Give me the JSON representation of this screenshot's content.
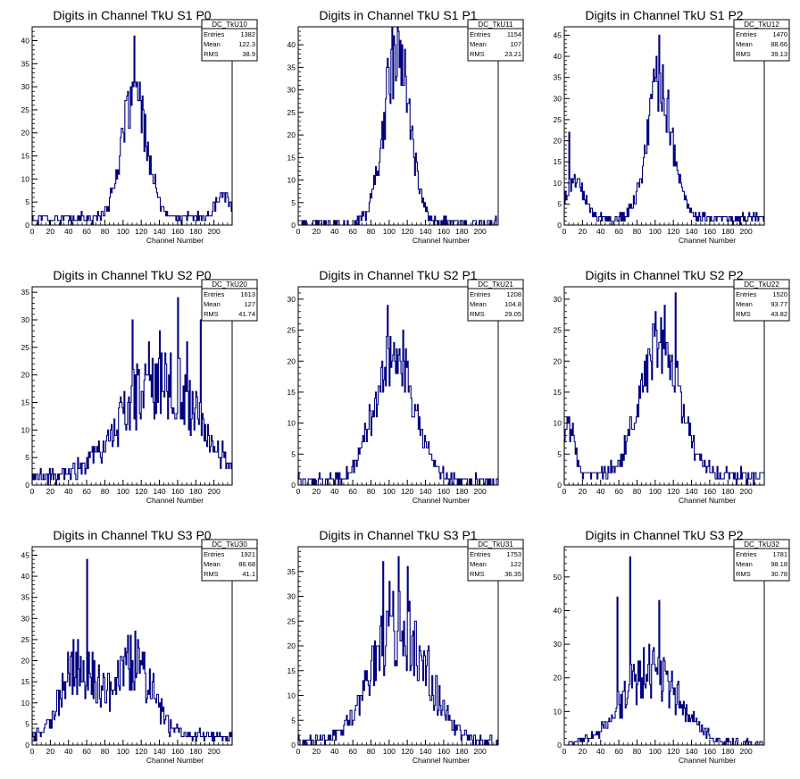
{
  "chart_data": [
    {
      "type": "histogram",
      "id": "TkU10",
      "title": "Digits in Channel TkU S1 P0",
      "xlabel": "Channel Number",
      "xlim": [
        0,
        220
      ],
      "ylim": [
        0,
        43
      ],
      "xticks": [
        0,
        20,
        40,
        60,
        80,
        100,
        120,
        140,
        160,
        180,
        200
      ],
      "yticks": [
        0,
        5,
        10,
        15,
        20,
        25,
        30,
        35,
        40
      ],
      "stats": {
        "name": "DC_TkU10",
        "labels": [
          "Entries",
          "Mean",
          "RMS"
        ],
        "values": [
          "1382",
          "122.3",
          "38.9"
        ]
      },
      "color": "#000080",
      "peaks": [
        {
          "mu": 112,
          "sigma": 14,
          "amp": 26
        },
        {
          "mu": 210,
          "sigma": 8,
          "amp": 5
        }
      ],
      "baseline": 1.5,
      "spikes": {
        "112": 41,
        "108": 30,
        "115": 31,
        "104": 28,
        "100": 20
      }
    },
    {
      "type": "histogram",
      "id": "TkU11",
      "title": "Digits in Channel TkU S1 P1",
      "xlabel": "Channel Number",
      "xlim": [
        0,
        220
      ],
      "ylim": [
        0,
        44
      ],
      "xticks": [
        0,
        20,
        40,
        60,
        80,
        100,
        120,
        140,
        160,
        180,
        200
      ],
      "yticks": [
        0,
        5,
        10,
        15,
        20,
        25,
        30,
        35,
        40
      ],
      "stats": {
        "name": "DC_TkU11",
        "labels": [
          "Entries",
          "Mean",
          "RMS"
        ],
        "values": [
          "1154",
          "107",
          "23.21"
        ]
      },
      "color": "#000080",
      "peaks": [
        {
          "mu": 108,
          "sigma": 14,
          "amp": 38
        }
      ],
      "baseline": 0.5,
      "spikes": {
        "110": 43,
        "106": 40
      }
    },
    {
      "type": "histogram",
      "id": "TkU12",
      "title": "Digits in Channel TkU S1 P2",
      "xlabel": "Channel Number",
      "xlim": [
        0,
        220
      ],
      "ylim": [
        0,
        47
      ],
      "xticks": [
        0,
        20,
        40,
        60,
        80,
        100,
        120,
        140,
        160,
        180,
        200
      ],
      "yticks": [
        0,
        5,
        10,
        15,
        20,
        25,
        30,
        35,
        40,
        45
      ],
      "stats": {
        "name": "DC_TkU12",
        "labels": [
          "Entries",
          "Mean",
          "RMS"
        ],
        "values": [
          "1470",
          "88.66",
          "39.13"
        ]
      },
      "color": "#000080",
      "peaks": [
        {
          "mu": 105,
          "sigma": 14,
          "amp": 32
        },
        {
          "mu": 12,
          "sigma": 10,
          "amp": 9
        }
      ],
      "baseline": 1.5,
      "spikes": {
        "104": 45,
        "108": 38,
        "5": 22,
        "100": 35
      }
    },
    {
      "type": "histogram",
      "id": "TkU20",
      "title": "Digits in Channel TkU S2 P0",
      "xlabel": "Channel Number",
      "xlim": [
        0,
        220
      ],
      "ylim": [
        0,
        36
      ],
      "xticks": [
        0,
        20,
        40,
        60,
        80,
        100,
        120,
        140,
        160,
        180,
        200
      ],
      "yticks": [
        0,
        5,
        10,
        15,
        20,
        25,
        30,
        35
      ],
      "stats": {
        "name": "DC_TkU20",
        "labels": [
          "Entries",
          "Mean",
          "RMS"
        ],
        "values": [
          "1613",
          "127",
          "41.74"
        ]
      },
      "color": "#000080",
      "peaks": [
        {
          "mu": 140,
          "sigma": 40,
          "amp": 18
        }
      ],
      "baseline": 1.5,
      "spikes": {
        "160": 34,
        "110": 30,
        "185": 30,
        "140": 28,
        "170": 26
      },
      "noisy": 1
    },
    {
      "type": "histogram",
      "id": "TkU21",
      "title": "Digits in Channel TkU S2 P1",
      "xlabel": "Channel Number",
      "xlim": [
        0,
        220
      ],
      "ylim": [
        0,
        32
      ],
      "xticks": [
        0,
        20,
        40,
        60,
        80,
        100,
        120,
        140,
        160,
        180,
        200
      ],
      "yticks": [
        0,
        5,
        10,
        15,
        20,
        25,
        30
      ],
      "stats": {
        "name": "DC_TkU21",
        "labels": [
          "Entries",
          "Mean",
          "RMS"
        ],
        "values": [
          "1208",
          "104.8",
          "29.05"
        ]
      },
      "color": "#000080",
      "peaks": [
        {
          "mu": 105,
          "sigma": 22,
          "amp": 21
        }
      ],
      "baseline": 0.6,
      "spikes": {
        "98": 29,
        "115": 25
      }
    },
    {
      "type": "histogram",
      "id": "TkU22",
      "title": "Digits in Channel TkU S2 P2",
      "xlabel": "Channel Number",
      "xlim": [
        0,
        220
      ],
      "ylim": [
        0,
        32
      ],
      "xticks": [
        0,
        20,
        40,
        60,
        80,
        100,
        120,
        140,
        160,
        180,
        200
      ],
      "yticks": [
        0,
        5,
        10,
        15,
        20,
        25,
        30
      ],
      "stats": {
        "name": "DC_TkU22",
        "labels": [
          "Entries",
          "Mean",
          "RMS"
        ],
        "values": [
          "1520",
          "93.77",
          "43.82"
        ]
      },
      "color": "#000080",
      "peaks": [
        {
          "mu": 105,
          "sigma": 22,
          "amp": 21
        },
        {
          "mu": 5,
          "sigma": 6,
          "amp": 8
        }
      ],
      "baseline": 1.5,
      "spikes": {
        "122": 31,
        "110": 29,
        "100": 28,
        "3": 11
      }
    },
    {
      "type": "histogram",
      "id": "TkU30",
      "title": "Digits in Channel TkU S3 P0",
      "xlabel": "Channel Number",
      "xlim": [
        0,
        220
      ],
      "ylim": [
        0,
        47
      ],
      "xticks": [
        0,
        20,
        40,
        60,
        80,
        100,
        120,
        140,
        160,
        180,
        200
      ],
      "yticks": [
        0,
        5,
        10,
        15,
        20,
        25,
        30,
        35,
        40,
        45
      ],
      "stats": {
        "name": "DC_TkU30",
        "labels": [
          "Entries",
          "Mean",
          "RMS"
        ],
        "values": [
          "1921",
          "86.68",
          "41.1"
        ]
      },
      "color": "#000080",
      "peaks": [
        {
          "mu": 50,
          "sigma": 18,
          "amp": 17
        },
        {
          "mu": 110,
          "sigma": 22,
          "amp": 17
        }
      ],
      "baseline": 2,
      "spikes": {
        "60": 44,
        "45": 25,
        "105": 26
      },
      "noisy": 1
    },
    {
      "type": "histogram",
      "id": "TkU31",
      "title": "Digits in Channel TkU S3 P1",
      "xlabel": "Channel Number",
      "xlim": [
        0,
        220
      ],
      "ylim": [
        0,
        40
      ],
      "xticks": [
        0,
        20,
        40,
        60,
        80,
        100,
        120,
        140,
        160,
        180,
        200
      ],
      "yticks": [
        0,
        5,
        10,
        15,
        20,
        25,
        30,
        35
      ],
      "stats": {
        "name": "DC_TkU31",
        "labels": [
          "Entries",
          "Mean",
          "RMS"
        ],
        "values": [
          "1753",
          "122",
          "36.35"
        ]
      },
      "color": "#000080",
      "peaks": [
        {
          "mu": 112,
          "sigma": 30,
          "amp": 23
        }
      ],
      "baseline": 0.8,
      "spikes": {
        "93": 37,
        "110": 38,
        "120": 36,
        "100": 33
      },
      "noisy": 1
    },
    {
      "type": "histogram",
      "id": "TkU32",
      "title": "Digits in Channel TkU S3 P2",
      "xlabel": "Channel Number",
      "xlim": [
        0,
        220
      ],
      "ylim": [
        0,
        59
      ],
      "xticks": [
        0,
        20,
        40,
        60,
        80,
        100,
        120,
        140,
        160,
        180,
        200
      ],
      "yticks": [
        0,
        10,
        20,
        30,
        40,
        50
      ],
      "stats": {
        "name": "DC_TkU32",
        "labels": [
          "Entries",
          "Mean",
          "RMS"
        ],
        "values": [
          "1781",
          "98.18",
          "30.78"
        ]
      },
      "color": "#000080",
      "peaks": [
        {
          "mu": 95,
          "sigma": 30,
          "amp": 22
        }
      ],
      "baseline": 0.5,
      "spikes": {
        "72": 56,
        "104": 43,
        "58": 44
      },
      "noisy": 1
    }
  ]
}
